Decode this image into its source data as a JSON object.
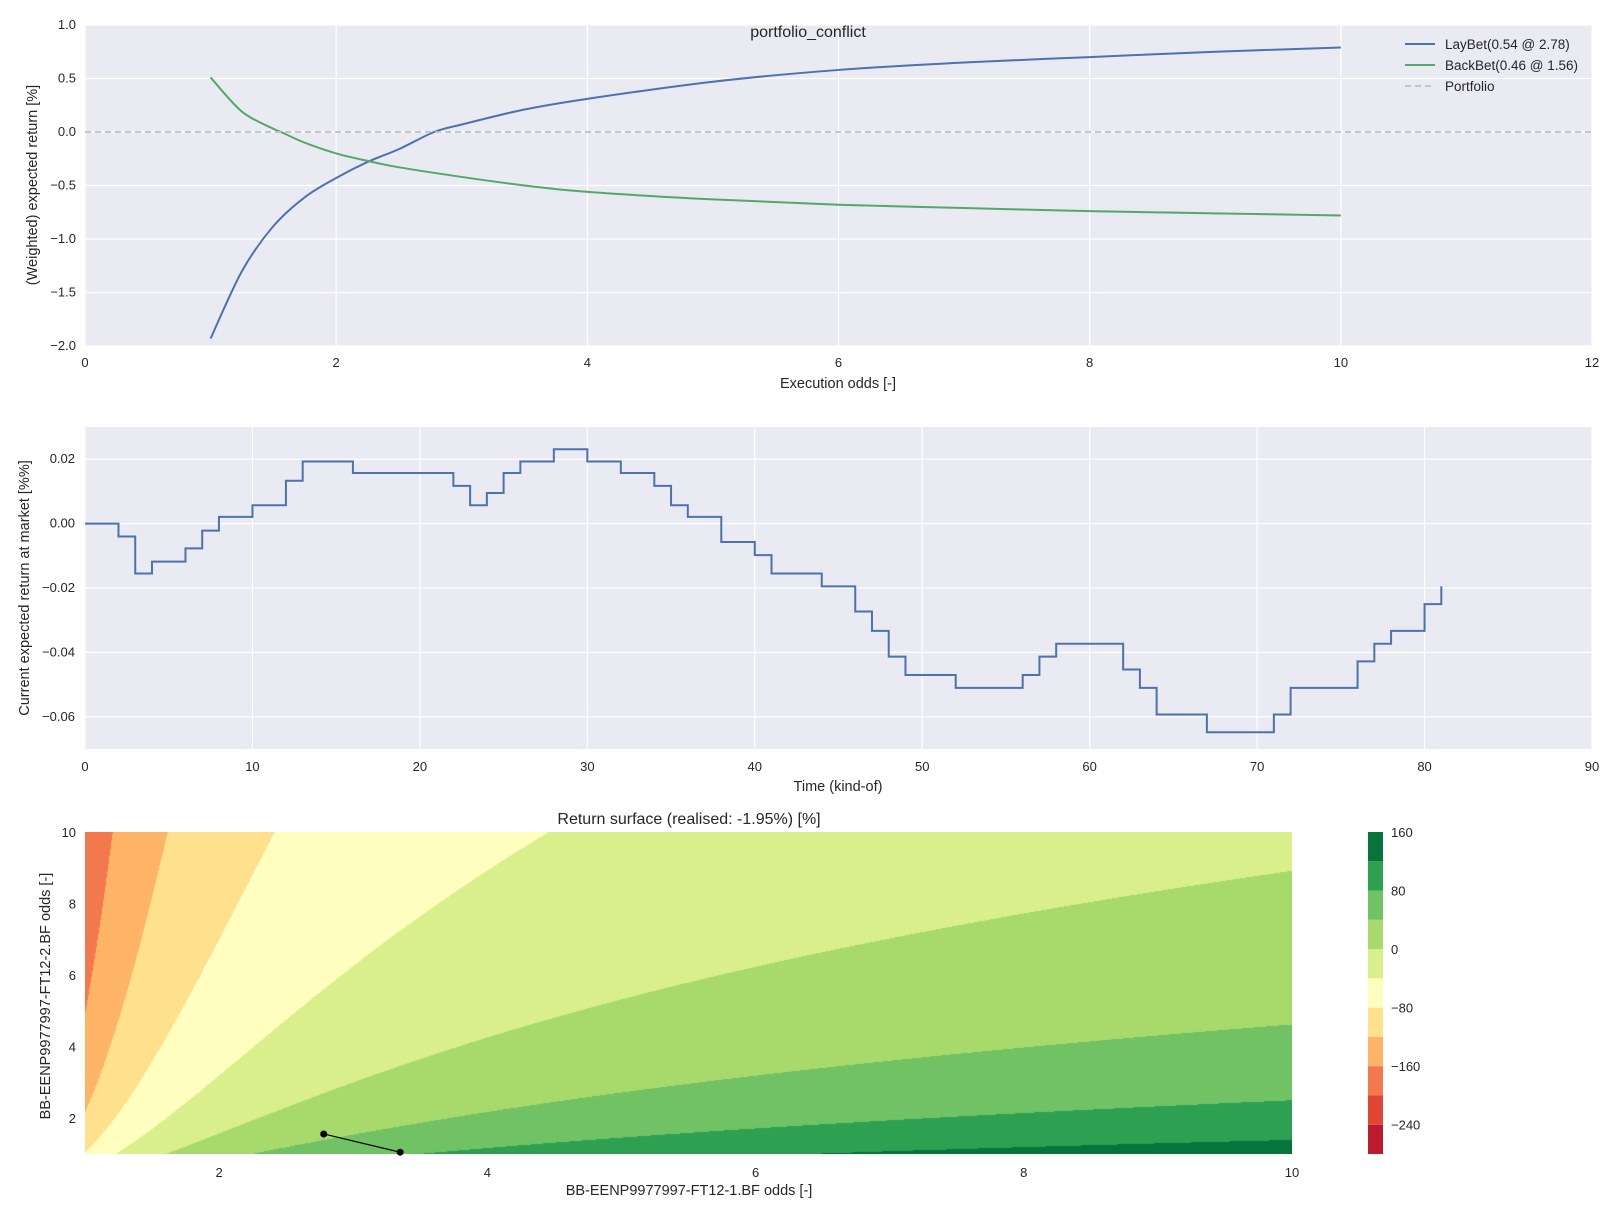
{
  "colors": {
    "axes_bg": "#eaeaf2",
    "grid": "#ffffff",
    "lay": "#4c72b0",
    "back": "#55a868",
    "portfolio": "#c0c0c0",
    "contour_levels": [
      "#be1a2d",
      "#e04633",
      "#f4784d",
      "#fdb466",
      "#fee08d",
      "#fffebe",
      "#d9ef8b",
      "#a7d96b",
      "#71c264",
      "#2da052",
      "#07753b"
    ]
  },
  "chart_data": [
    {
      "type": "line",
      "title": "portfolio_conflict",
      "xlabel": "Execution odds [-]",
      "ylabel": "(Weighted) expected return [%]",
      "xlim": [
        0,
        12
      ],
      "ylim": [
        -2.0,
        1.0
      ],
      "xticks": [
        "0",
        "2",
        "4",
        "6",
        "8",
        "10",
        "12"
      ],
      "yticks": [
        "−2.0",
        "−1.5",
        "−1.0",
        "−0.5",
        "0.0",
        "0.5",
        "1.0"
      ],
      "grid": true,
      "legend": "top-right",
      "series": [
        {
          "name": "LayBet(0.54 @ 2.78)",
          "color": "lay",
          "style": "solid",
          "x": [
            1.0,
            1.25,
            1.5,
            1.75,
            2.0,
            2.25,
            2.5,
            2.78,
            3.0,
            3.5,
            4.0,
            5.0,
            6.0,
            7.0,
            8.0,
            9.0,
            10.0
          ],
          "y": [
            -1.93,
            -1.3,
            -0.88,
            -0.61,
            -0.43,
            -0.28,
            -0.16,
            0.0,
            0.07,
            0.21,
            0.31,
            0.47,
            0.58,
            0.65,
            0.7,
            0.75,
            0.79
          ]
        },
        {
          "name": "BackBet(0.46 @ 1.56)",
          "color": "back",
          "style": "solid",
          "x": [
            1.0,
            1.25,
            1.5,
            1.56,
            1.75,
            2.0,
            2.25,
            2.5,
            3.0,
            3.5,
            4.0,
            5.0,
            6.0,
            7.0,
            8.0,
            9.0,
            10.0
          ],
          "y": [
            0.51,
            0.19,
            0.03,
            0.0,
            -0.1,
            -0.2,
            -0.27,
            -0.33,
            -0.42,
            -0.5,
            -0.56,
            -0.63,
            -0.68,
            -0.71,
            -0.74,
            -0.76,
            -0.78
          ]
        },
        {
          "name": "Portfolio",
          "color": "portfolio",
          "style": "dashed",
          "x": [
            0,
            12
          ],
          "y": [
            0.0,
            0.0
          ]
        }
      ]
    },
    {
      "type": "line",
      "step": true,
      "title": "",
      "xlabel": "Time (kind-of)",
      "ylabel": "Current expected return at market [%%]",
      "xlim": [
        0,
        90
      ],
      "ylim": [
        -0.07,
        0.03
      ],
      "xticks": [
        "0",
        "10",
        "20",
        "30",
        "40",
        "50",
        "60",
        "70",
        "80",
        "90"
      ],
      "yticks": [
        "−0.06",
        "−0.04",
        "−0.02",
        "0.00",
        "0.02"
      ],
      "grid": true,
      "series": [
        {
          "color": "lay",
          "x": [
            0,
            2,
            3,
            4,
            6,
            7,
            8,
            10,
            12,
            13,
            16,
            22,
            23,
            24,
            25,
            26,
            28,
            30,
            32,
            34,
            35,
            36,
            38,
            40,
            41,
            44,
            46,
            47,
            48,
            49,
            52,
            56,
            57,
            58,
            62,
            63,
            64,
            67,
            71,
            72,
            76,
            77,
            78,
            80,
            81
          ],
          "y": [
            0.0,
            -0.004,
            -0.0155,
            -0.0118,
            -0.0077,
            -0.0022,
            0.0021,
            0.0057,
            0.0133,
            0.0193,
            0.0157,
            0.0117,
            0.0057,
            0.0095,
            0.0157,
            0.0193,
            0.0231,
            0.0193,
            0.0157,
            0.0117,
            0.0057,
            0.0021,
            -0.0057,
            -0.0098,
            -0.0155,
            -0.0195,
            -0.0273,
            -0.0333,
            -0.0413,
            -0.047,
            -0.051,
            -0.047,
            -0.0413,
            -0.0373,
            -0.0453,
            -0.051,
            -0.0593,
            -0.0648,
            -0.0593,
            -0.051,
            -0.0428,
            -0.0373,
            -0.0333,
            -0.025,
            -0.0195
          ]
        }
      ]
    },
    {
      "type": "heatmap",
      "subtype": "filled-contour",
      "title": "Return surface (realised: -1.95%) [%]",
      "xlabel": "BB-EENP9977997-FT12-1.BF odds [-]",
      "ylabel": "BB-EENP9977997-FT12-2.BF odds [-]",
      "xlim": [
        1,
        10
      ],
      "ylim": [
        1,
        10
      ],
      "xticks": [
        "2",
        "4",
        "6",
        "8",
        "10"
      ],
      "yticks": [
        "2",
        "4",
        "6",
        "8",
        "10"
      ],
      "colorbar": {
        "range": [
          -280,
          160
        ],
        "step": 40,
        "ticks": [
          "−240",
          "−160",
          "−80",
          "0",
          "80",
          "160"
        ]
      },
      "path": {
        "x": [
          2.78,
          3.35
        ],
        "y": [
          1.56,
          1.05
        ]
      }
    }
  ]
}
